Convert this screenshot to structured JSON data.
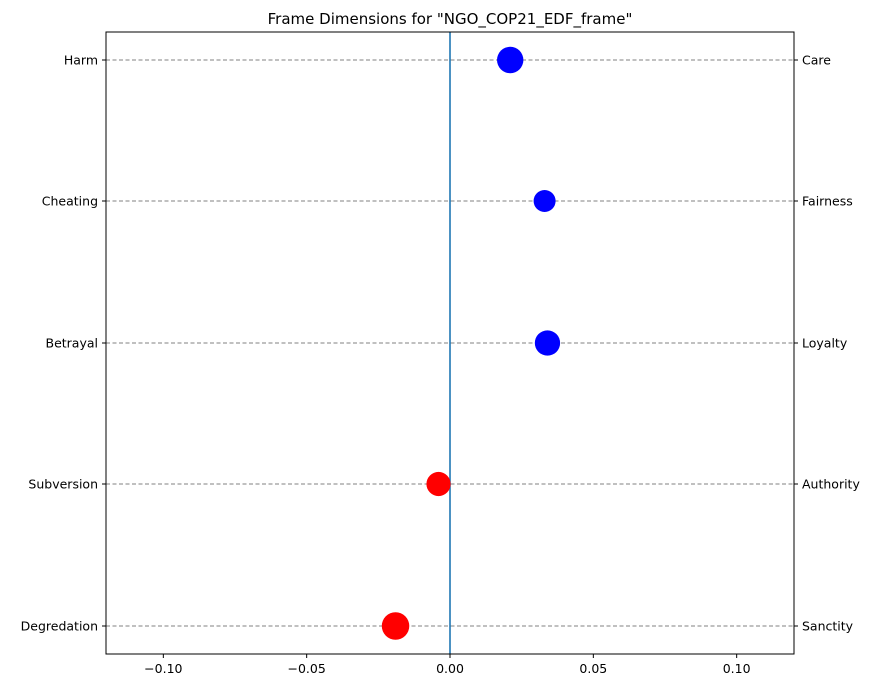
{
  "chart_data": {
    "type": "scatter",
    "title": "Frame Dimensions for \"NGO_COP21_EDF_frame\"",
    "xlabel": "",
    "ylabel": "",
    "xlim": [
      -0.12,
      0.12
    ],
    "xticks": [
      -0.1,
      -0.05,
      0.0,
      0.05,
      0.1
    ],
    "xtick_labels": [
      "−0.10",
      "−0.05",
      "0.00",
      "0.05",
      "0.10"
    ],
    "left_labels": [
      "Harm",
      "Cheating",
      "Betrayal",
      "Subversion",
      "Degredation"
    ],
    "right_labels": [
      "Care",
      "Fairness",
      "Loyalty",
      "Authority",
      "Sanctity"
    ],
    "points": [
      {
        "dimension": "Care",
        "value": 0.021,
        "color": "#0000ff",
        "size": 1.2
      },
      {
        "dimension": "Fairness",
        "value": 0.033,
        "color": "#0000ff",
        "size": 1.0
      },
      {
        "dimension": "Loyalty",
        "value": 0.034,
        "color": "#0000ff",
        "size": 1.15
      },
      {
        "dimension": "Authority",
        "value": -0.004,
        "color": "#ff0000",
        "size": 1.1
      },
      {
        "dimension": "Sanctity",
        "value": -0.019,
        "color": "#ff0000",
        "size": 1.25
      }
    ],
    "zero_line_color": "#1f77b4",
    "grid": "horizontal dashed"
  }
}
